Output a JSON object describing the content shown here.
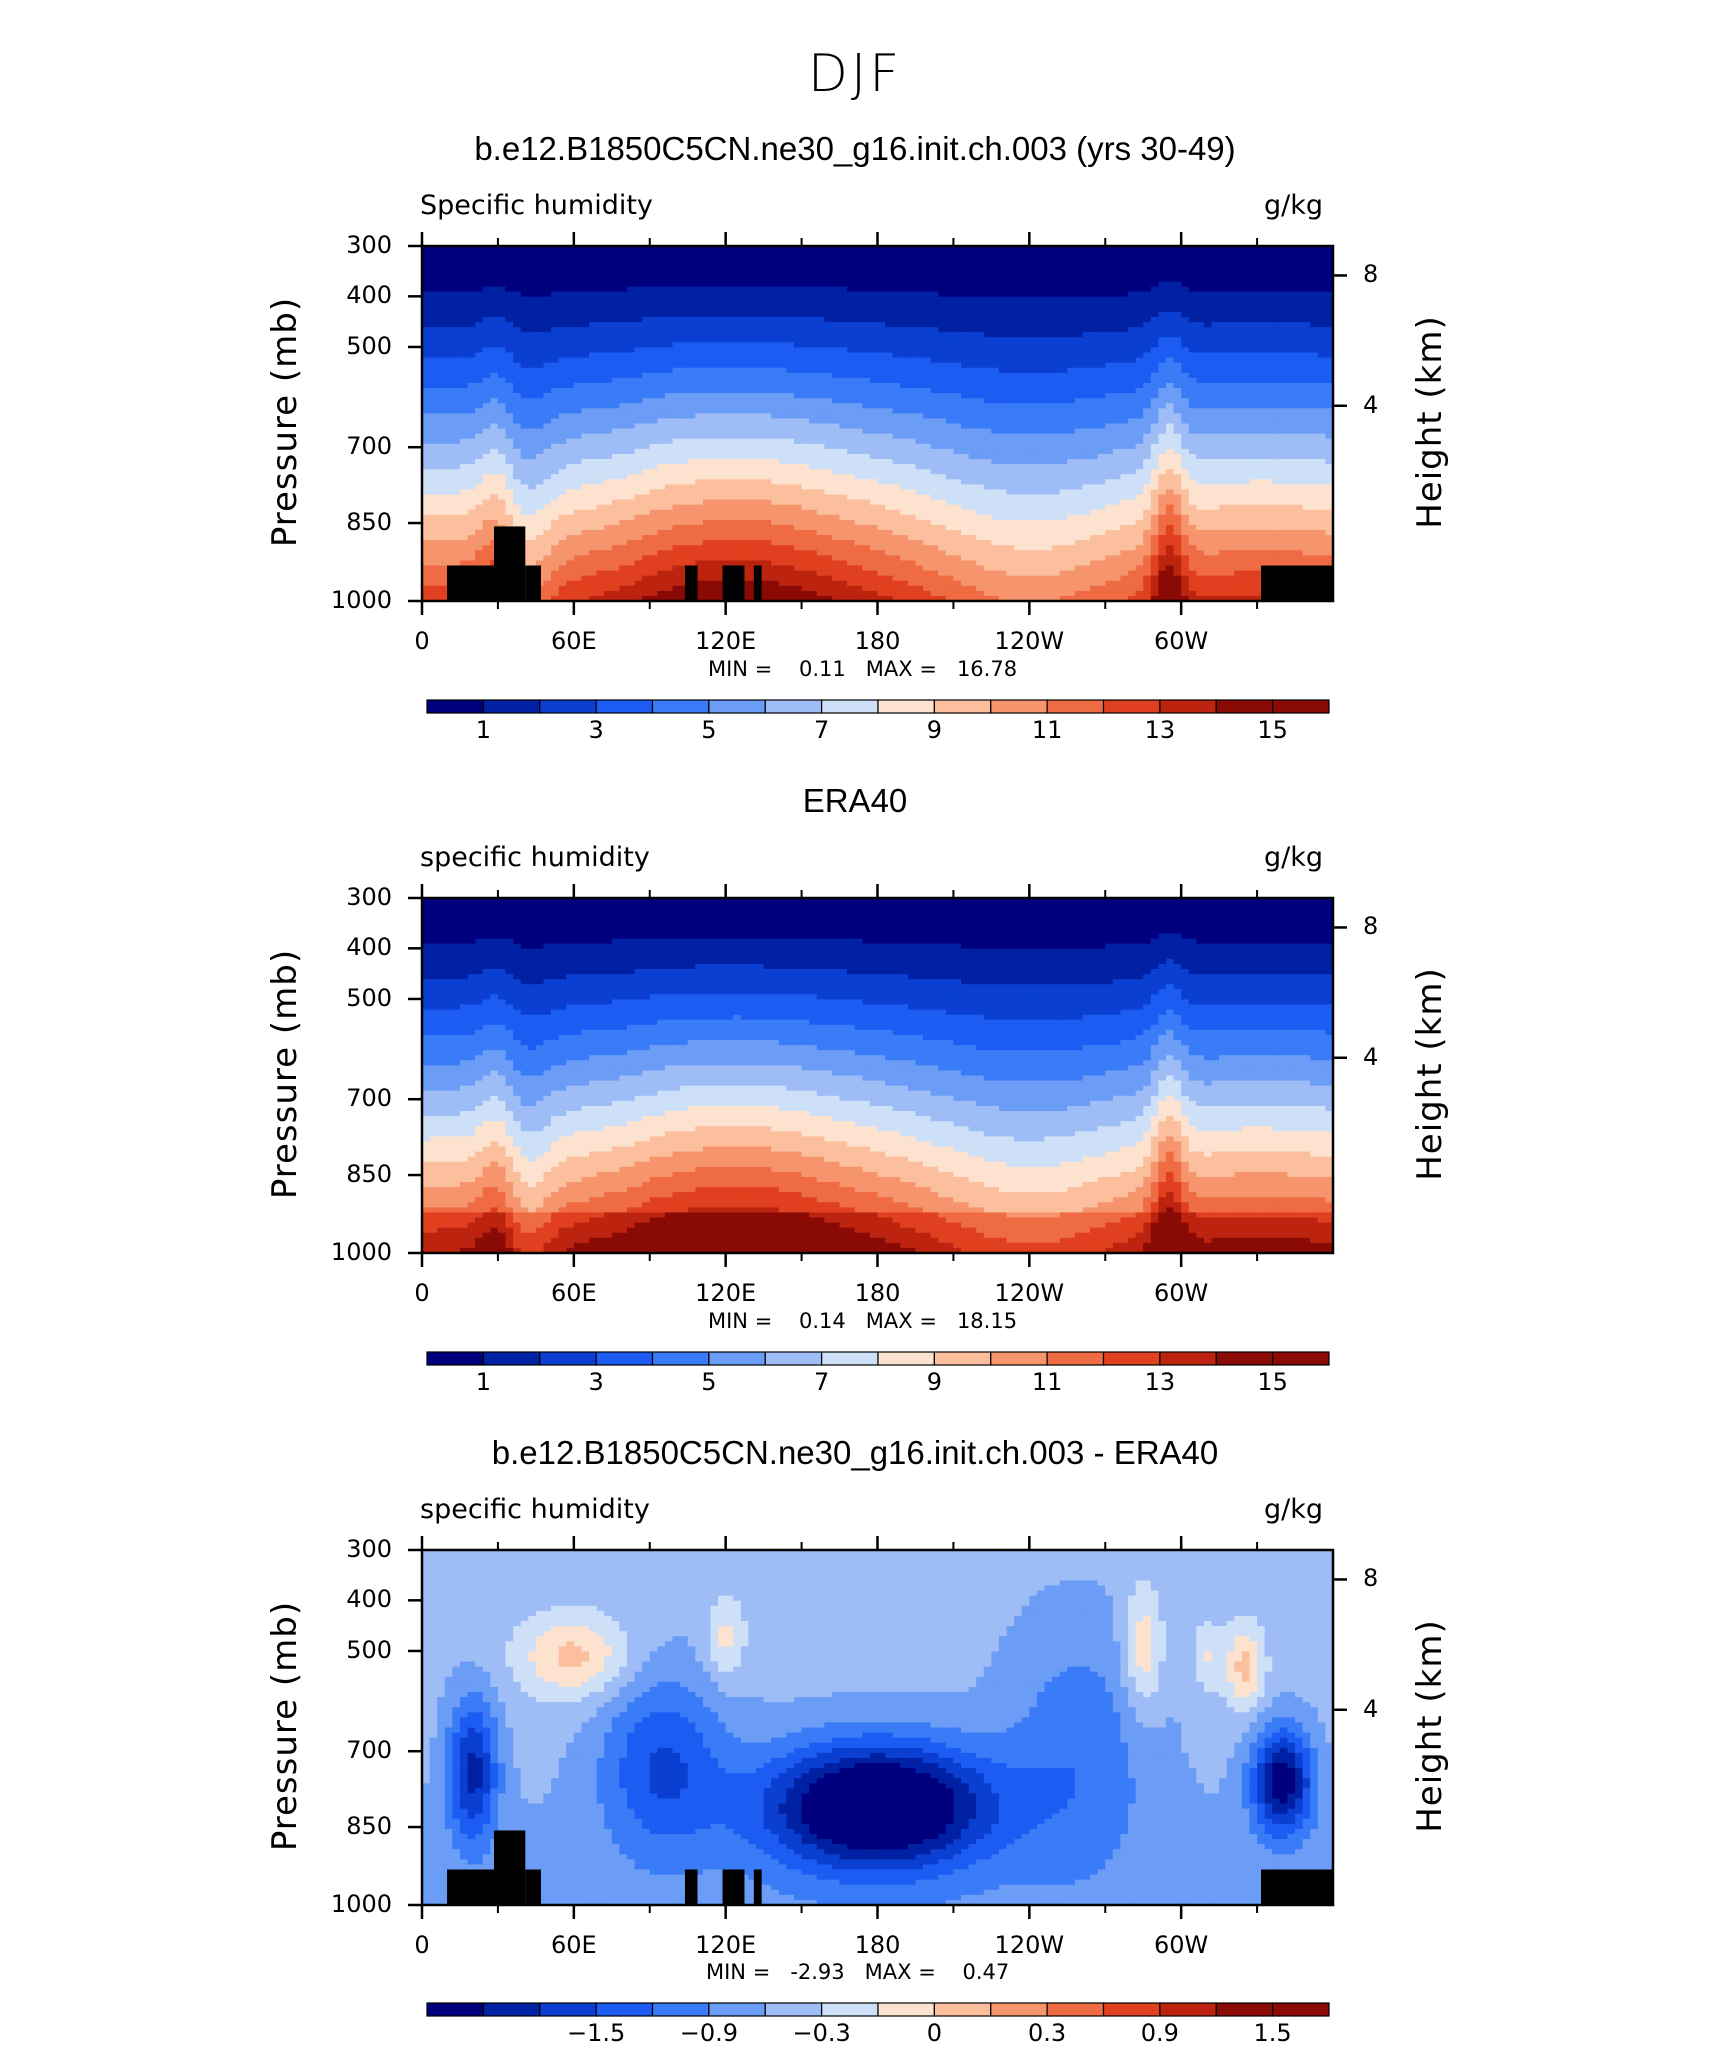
{
  "figure_title": "DJF",
  "panels": [
    {
      "title": "b.e12.B1850C5CN.ne30_g16.init.ch.003 (yrs 30-49)",
      "left_label": "Specific humidity",
      "right_label": "g/kg",
      "minmax": "MIN =    0.11   MAX =   16.78"
    },
    {
      "title": "ERA40",
      "left_label": "specific humidity",
      "right_label": "g/kg",
      "minmax": "MIN =    0.14   MAX =   18.15"
    },
    {
      "title": "b.e12.B1850C5CN.ne30_g16.init.ch.003 - ERA40",
      "left_label": "specific humidity",
      "right_label": "g/kg",
      "minmax": "MIN =   -2.93   MAX =    0.47"
    }
  ],
  "axes": {
    "ylabel_left": "Pressure (mb)",
    "ylabel_right": "Height (km)",
    "pressure_ticks": [
      "300",
      "400",
      "500",
      "700",
      "850",
      "1000"
    ],
    "height_ticks": [
      "8",
      "4"
    ],
    "lon_ticks": [
      "0",
      "60E",
      "120E",
      "180",
      "120W",
      "60W"
    ]
  },
  "colorbars": {
    "abs_labels": [
      "1",
      "3",
      "5",
      "7",
      "9",
      "11",
      "13",
      "15"
    ],
    "diff_labels": [
      "−1.5",
      "−0.9",
      "−0.3",
      "0",
      "0.3",
      "0.9",
      "1.5"
    ],
    "colors": [
      "#00007f",
      "#0021a3",
      "#0a3fd1",
      "#1d5cf3",
      "#3a7bf7",
      "#6b9df6",
      "#9ebcf6",
      "#cde0f8",
      "#fde2cf",
      "#fbbf9e",
      "#f6956d",
      "#ef6b43",
      "#e0401f",
      "#bd2410",
      "#8a0a05"
    ]
  },
  "chart_data": [
    {
      "type": "heatmap",
      "title": "b.e12.B1850C5CN.ne30_g16.init.ch.003 (yrs 30-49)",
      "xlabel": "",
      "ylabel": "Pressure (mb)",
      "y2label": "Height (km)",
      "x_range": [
        0,
        360
      ],
      "y_range_mb": [
        1000,
        300
      ],
      "min": 0.11,
      "max": 16.78,
      "units": "g/kg"
    },
    {
      "type": "heatmap",
      "title": "ERA40",
      "xlabel": "",
      "ylabel": "Pressure (mb)",
      "y2label": "Height (km)",
      "x_range": [
        0,
        360
      ],
      "y_range_mb": [
        1000,
        300
      ],
      "min": 0.14,
      "max": 18.15,
      "units": "g/kg"
    },
    {
      "type": "heatmap",
      "title": "b.e12.B1850C5CN.ne30_g16.init.ch.003 - ERA40",
      "xlabel": "",
      "ylabel": "Pressure (mb)",
      "y2label": "Height (km)",
      "x_range": [
        0,
        360
      ],
      "y_range_mb": [
        1000,
        300
      ],
      "min": -2.93,
      "max": 0.47,
      "units": "g/kg"
    }
  ]
}
